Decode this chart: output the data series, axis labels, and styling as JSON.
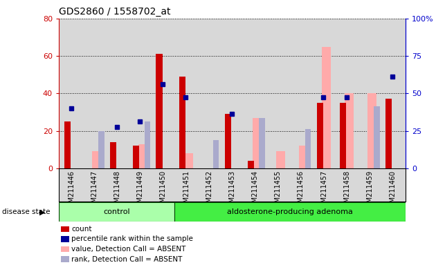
{
  "title": "GDS2860 / 1558702_at",
  "samples": [
    "GSM211446",
    "GSM211447",
    "GSM211448",
    "GSM211449",
    "GSM211450",
    "GSM211451",
    "GSM211452",
    "GSM211453",
    "GSM211454",
    "GSM211455",
    "GSM211456",
    "GSM211457",
    "GSM211458",
    "GSM211459",
    "GSM211460"
  ],
  "count": [
    25,
    0,
    14,
    12,
    61,
    49,
    0,
    29,
    4,
    0,
    0,
    35,
    35,
    0,
    37
  ],
  "percentile": [
    32,
    0,
    22,
    25,
    45,
    38,
    0,
    29,
    0,
    0,
    0,
    38,
    38,
    0,
    49
  ],
  "value_absent": [
    0,
    9,
    0,
    13,
    0,
    8,
    0,
    0,
    27,
    9,
    12,
    65,
    40,
    40,
    0
  ],
  "rank_absent": [
    0,
    20,
    0,
    25,
    0,
    0,
    15,
    0,
    27,
    0,
    21,
    0,
    0,
    33,
    0
  ],
  "n_control": 5,
  "n_total": 15,
  "ylim_left": [
    0,
    80
  ],
  "ylim_right": [
    0,
    100
  ],
  "count_color": "#cc0000",
  "percentile_color": "#000099",
  "value_absent_color": "#ffaaaa",
  "rank_absent_color": "#aaaacc",
  "control_bg_color": "#aaffaa",
  "adenoma_bg_color": "#44ee44",
  "plot_bg": "#d8d8d8",
  "yticks_left": [
    0,
    20,
    40,
    60,
    80
  ],
  "yticks_right": [
    0,
    25,
    50,
    75,
    100
  ],
  "right_axis_color": "#0000cc",
  "left_axis_color": "#cc0000"
}
